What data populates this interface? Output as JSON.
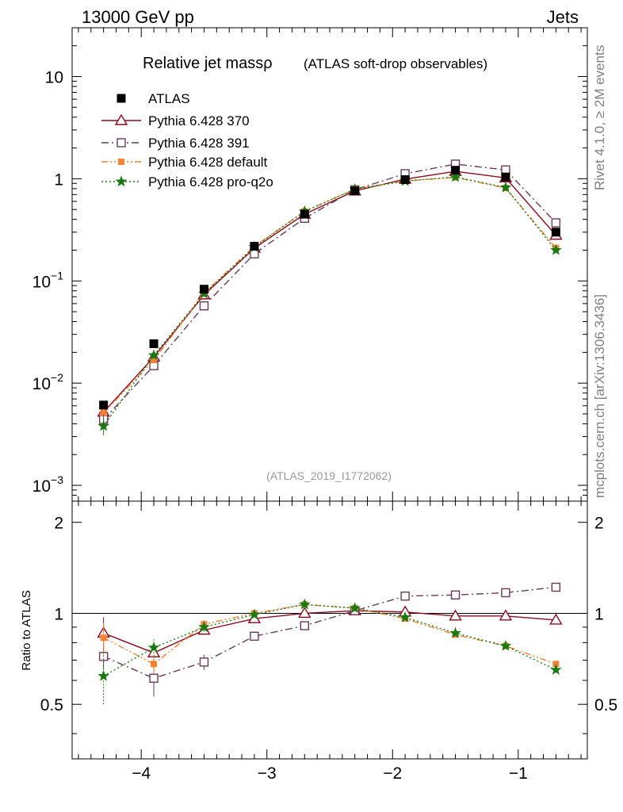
{
  "header": {
    "left_label": "13000 GeV pp",
    "right_label": "Jets",
    "side_rivet": "Rivet 4.1.0, ≥ 2M events",
    "side_source": "mcplots.cern.ch [arXiv:1306.3436]",
    "analysis_id": "(ATLAS_2019_I1772062)"
  },
  "colors": {
    "atlas": "#000000",
    "p370": "#8b0a1e",
    "p391": "#6b3a55",
    "pdefault": "#f58231",
    "pq2o": "#1a7a12",
    "side_text": "#808080",
    "id_text": "#999999"
  },
  "chart_data": [
    {
      "type": "line",
      "panel": "main",
      "title": "Relative jet mass",
      "title_symbol": "ρ",
      "subtitle": "(ATLAS soft-drop observables)",
      "xlabel": "",
      "ylabel": "",
      "xlim": [
        -4.55,
        -0.45
      ],
      "ylim": [
        0.0007,
        30
      ],
      "yscale": "log",
      "ytick_labels": [
        {
          "value": 0.001,
          "base": "10",
          "exp": "−3"
        },
        {
          "value": 0.01,
          "base": "10",
          "exp": "−2"
        },
        {
          "value": 0.1,
          "base": "10",
          "exp": "−1"
        },
        {
          "value": 1,
          "base": "1",
          "exp": ""
        },
        {
          "value": 10,
          "base": "10",
          "exp": ""
        }
      ],
      "x": [
        -4.3,
        -3.9,
        -3.5,
        -3.1,
        -2.7,
        -2.3,
        -1.9,
        -1.5,
        -1.1,
        -0.7
      ],
      "legend_position": "top-left",
      "series": [
        {
          "name": "ATLAS",
          "key": "atlas",
          "marker": "square-filled",
          "line": "none",
          "values": [
            0.0061,
            0.0243,
            0.083,
            0.218,
            0.45,
            0.76,
            0.98,
            1.21,
            1.04,
            0.3
          ]
        },
        {
          "name": "Pythia 6.428 370",
          "key": "p370",
          "marker": "triangle-open",
          "line": "solid",
          "values": [
            0.0052,
            0.018,
            0.073,
            0.209,
            0.45,
            0.76,
            0.99,
            1.18,
            1.02,
            0.28
          ]
        },
        {
          "name": "Pythia 6.428 391",
          "key": "p391",
          "marker": "square-open",
          "line": "dashdot",
          "values": [
            0.0044,
            0.0148,
            0.057,
            0.184,
            0.41,
            0.78,
            1.12,
            1.39,
            1.22,
            0.37
          ]
        },
        {
          "name": "Pythia 6.428 default",
          "key": "pdefault",
          "marker": "square-filled-small",
          "line": "dashdotdot",
          "values": [
            0.0051,
            0.0168,
            0.076,
            0.218,
            0.48,
            0.79,
            0.95,
            1.03,
            0.81,
            0.21
          ]
        },
        {
          "name": "Pythia 6.428 pro-q2o",
          "key": "pq2o",
          "marker": "star",
          "line": "dotted",
          "values": [
            0.0038,
            0.0187,
            0.075,
            0.215,
            0.48,
            0.79,
            0.95,
            1.04,
            0.82,
            0.2
          ]
        }
      ]
    },
    {
      "type": "line",
      "panel": "ratio",
      "title": "",
      "xlabel": "",
      "ylabel": "Ratio to ATLAS",
      "xlim": [
        -4.55,
        -0.45
      ],
      "ylim": [
        0.33,
        2.35
      ],
      "yscale": "log",
      "ytick_labels": [
        {
          "value": 0.5,
          "label": "0.5"
        },
        {
          "value": 1,
          "label": "1"
        },
        {
          "value": 2,
          "label": "2"
        }
      ],
      "xtick_labels": [
        {
          "value": -4,
          "label": "−4"
        },
        {
          "value": -3,
          "label": "−3"
        },
        {
          "value": -2,
          "label": "−2"
        },
        {
          "value": -1,
          "label": "−1"
        }
      ],
      "x": [
        -4.3,
        -3.9,
        -3.5,
        -3.1,
        -2.7,
        -2.3,
        -1.9,
        -1.5,
        -1.1,
        -0.7
      ],
      "reference_line": 1,
      "series": [
        {
          "name": "Pythia 6.428 370",
          "key": "p370",
          "marker": "triangle-open",
          "line": "solid",
          "values": [
            0.86,
            0.74,
            0.88,
            0.96,
            1.0,
            1.02,
            1.01,
            0.98,
            0.98,
            0.95
          ],
          "err": [
            0.11,
            0.04,
            0.02,
            0.01,
            0.01,
            0.01,
            0.01,
            0.01,
            0.01,
            0.01
          ]
        },
        {
          "name": "Pythia 6.428 391",
          "key": "p391",
          "marker": "square-open",
          "line": "dashdot",
          "values": [
            0.72,
            0.61,
            0.69,
            0.84,
            0.91,
            1.02,
            1.14,
            1.15,
            1.17,
            1.22
          ],
          "err": [
            0.07,
            0.08,
            0.04,
            0.01,
            0.01,
            0.01,
            0.01,
            0.01,
            0.01,
            0.01
          ]
        },
        {
          "name": "Pythia 6.428 default",
          "key": "pdefault",
          "marker": "square-filled-small",
          "line": "dashdotdot",
          "values": [
            0.83,
            0.68,
            0.92,
            1.0,
            1.07,
            1.04,
            0.96,
            0.85,
            0.78,
            0.68
          ],
          "err": [
            0.1,
            0.05,
            0.03,
            0.01,
            0.01,
            0.01,
            0.01,
            0.01,
            0.01,
            0.01
          ]
        },
        {
          "name": "Pythia 6.428 pro-q2o",
          "key": "pq2o",
          "marker": "star",
          "line": "dotted",
          "values": [
            0.62,
            0.77,
            0.9,
            0.99,
            1.07,
            1.04,
            0.97,
            0.86,
            0.78,
            0.65
          ],
          "err": [
            0.12,
            0.05,
            0.03,
            0.01,
            0.01,
            0.01,
            0.01,
            0.01,
            0.01,
            0.01
          ]
        }
      ]
    }
  ]
}
